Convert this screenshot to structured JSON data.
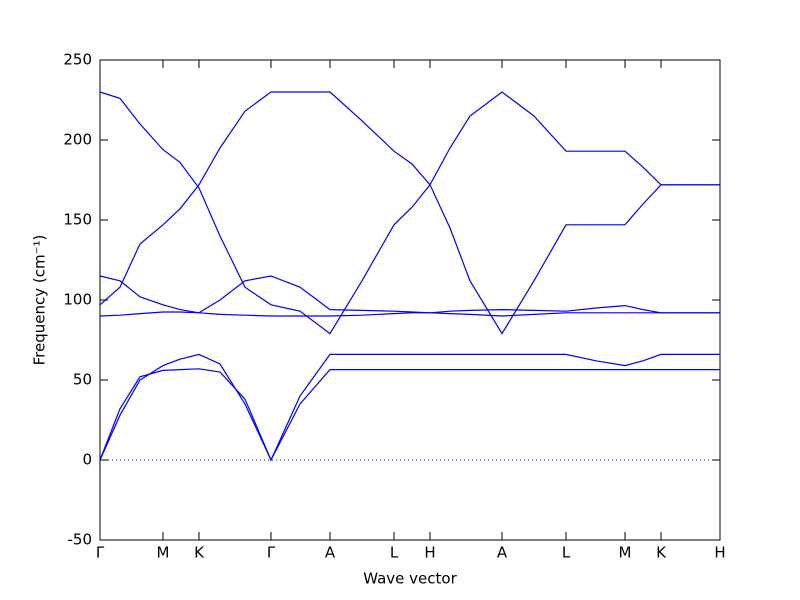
{
  "chart_data": {
    "type": "line",
    "xlabel": "Wave vector",
    "ylabel": "Frequency (cm⁻¹)",
    "x": [
      0,
      20,
      40,
      63,
      80,
      99,
      120,
      145,
      171,
      200,
      230,
      262,
      294,
      312,
      330,
      350,
      370,
      402,
      434,
      466,
      496,
      525,
      543,
      561,
      620
    ],
    "xlim": [
      0,
      620
    ],
    "xticks": [
      {
        "value": 0,
        "label": "Γ"
      },
      {
        "value": 63,
        "label": "M"
      },
      {
        "value": 99,
        "label": "K"
      },
      {
        "value": 171,
        "label": "Γ"
      },
      {
        "value": 230,
        "label": "A"
      },
      {
        "value": 294,
        "label": "L"
      },
      {
        "value": 330,
        "label": "H"
      },
      {
        "value": 402,
        "label": "A"
      },
      {
        "value": 466,
        "label": "L"
      },
      {
        "value": 525,
        "label": "M"
      },
      {
        "value": 561,
        "label": "K"
      },
      {
        "value": 620,
        "label": "H"
      }
    ],
    "ylim": [
      -50,
      250
    ],
    "yticks": [
      -50,
      0,
      50,
      100,
      150,
      200,
      250
    ],
    "zero_line": true,
    "series": [
      {
        "color": "#0000ff",
        "values": [
          230,
          226,
          210,
          194,
          186,
          170,
          140,
          108,
          97,
          93,
          79,
          112,
          147,
          158,
          172,
          195,
          215,
          230,
          215,
          193,
          193,
          193,
          183,
          172,
          172
        ]
      },
      {
        "color": "#0000ff",
        "values": [
          97,
          108,
          135,
          147,
          157,
          172,
          195,
          218,
          230,
          230,
          230,
          212,
          193,
          185,
          172,
          145,
          112,
          79,
          112,
          147,
          147,
          147,
          160,
          172,
          172
        ]
      },
      {
        "color": "#0000ff",
        "values": [
          115,
          112,
          102,
          97,
          94,
          92,
          100,
          112,
          115,
          108,
          94,
          93.5,
          93,
          92.5,
          92,
          93,
          93.5,
          94,
          93.5,
          93,
          95,
          96.5,
          94,
          92,
          92
        ]
      },
      {
        "color": "#0000ff",
        "values": [
          90,
          90.5,
          91.5,
          92.5,
          92.5,
          92,
          91,
          90.5,
          90,
          90,
          90,
          90.5,
          91.5,
          92,
          92,
          91.5,
          91,
          90,
          91,
          92,
          92,
          92,
          92,
          92,
          92
        ]
      },
      {
        "color": "#0000ff",
        "values": [
          0,
          28,
          50,
          59,
          63,
          66,
          60,
          35,
          0,
          40,
          66,
          66,
          66,
          66,
          66,
          66,
          66,
          66,
          66,
          66,
          62,
          59,
          62,
          66,
          66
        ]
      },
      {
        "color": "#0000ff",
        "values": [
          0,
          32,
          52,
          56,
          56.5,
          57,
          55,
          38,
          0,
          35,
          56.5,
          56.5,
          56.5,
          56.5,
          56.5,
          56.5,
          56.5,
          56.5,
          56.5,
          56.5,
          56.5,
          56.5,
          56.5,
          56.5,
          56.5
        ]
      }
    ]
  }
}
